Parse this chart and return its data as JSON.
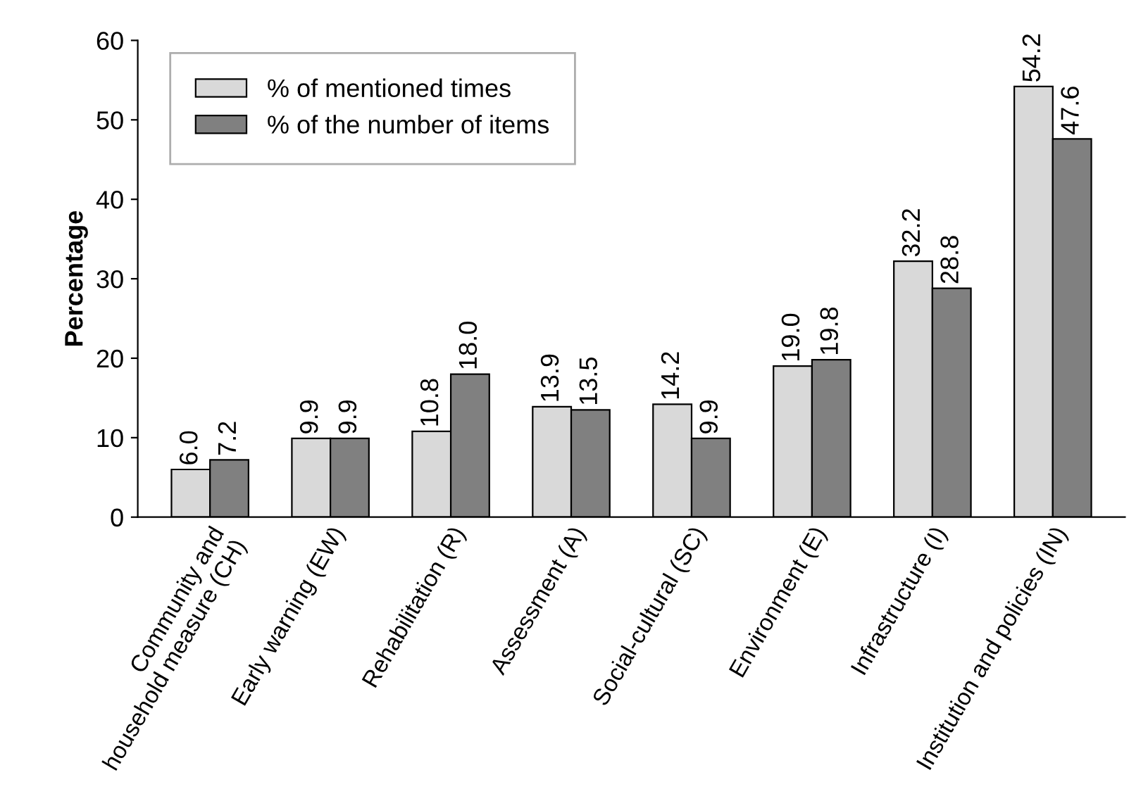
{
  "chart_data": {
    "type": "bar",
    "ylabel": "Percentage",
    "categories": [
      "Community and\nhousehold measure (CH)",
      "Early warning (EW)",
      "Rehabilitation (R)",
      "Assessment (A)",
      "Social-cultural (SC)",
      "Environment (E)",
      "Infrastructure (I)",
      "Institution and policies (IN)"
    ],
    "series": [
      {
        "name": "% of mentioned times",
        "color": "#d9d9d9",
        "values": [
          6.0,
          9.9,
          10.8,
          13.9,
          14.2,
          19.0,
          32.2,
          54.2
        ],
        "value_labels": [
          "6.0",
          "9.9",
          "10.8",
          "13.9",
          "14.2",
          "19.0",
          "32.2",
          "54.2"
        ]
      },
      {
        "name": "% of the number of items",
        "color": "#808080",
        "values": [
          7.2,
          9.9,
          18.0,
          13.5,
          9.9,
          19.8,
          28.8,
          47.6
        ],
        "value_labels": [
          "7.2",
          "9.9",
          "18.0",
          "13.5",
          "9.9",
          "19.8",
          "28.8",
          "47.6"
        ]
      }
    ],
    "ylim": [
      0,
      60
    ],
    "yticks": [
      0,
      10,
      20,
      30,
      40,
      50,
      60
    ],
    "grid": false,
    "legend": "top left"
  }
}
